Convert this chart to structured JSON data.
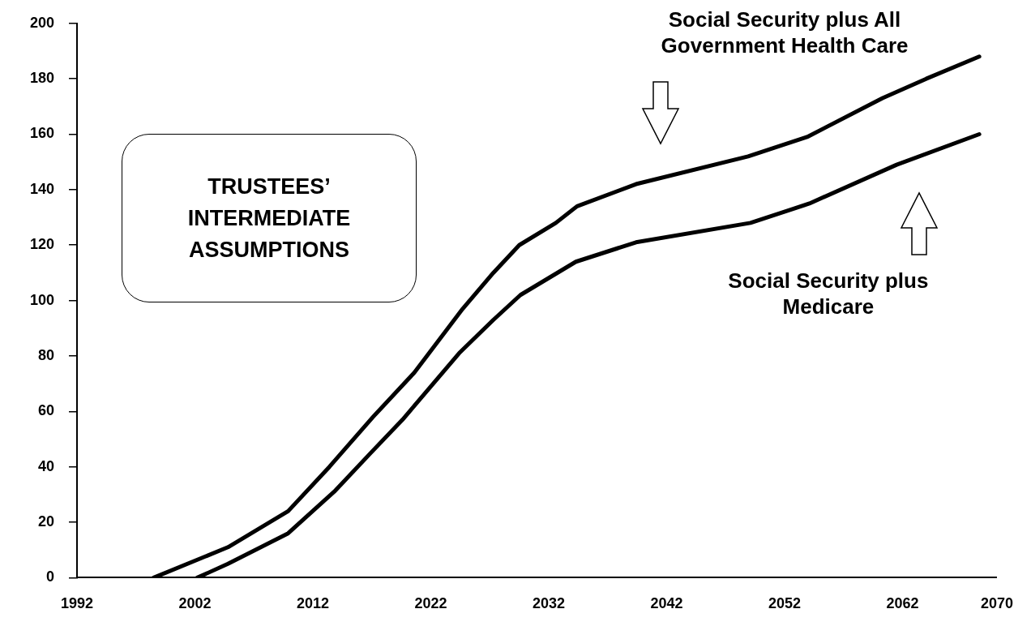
{
  "chart_data": {
    "type": "line",
    "xlim": [
      1992,
      2070
    ],
    "xticks": [
      1992,
      2002,
      2012,
      2022,
      2032,
      2042,
      2052,
      2062,
      2070
    ],
    "ylim": [
      0,
      200
    ],
    "yticks": [
      0,
      20,
      40,
      60,
      80,
      100,
      120,
      140,
      160,
      180,
      200
    ],
    "legend": false,
    "marker": "none",
    "line_style": "solid",
    "annotations": [
      "TRUSTEES’ INTERMEDIATE ASSUMPTIONS"
    ],
    "series": [
      {
        "name": "Social Security plus All Government Health Care",
        "color": "#000000",
        "x": [
          1998.5,
          2004.8,
          2009.9,
          2013.4,
          2017.1,
          2020.6,
          2024.7,
          2027.3,
          2029.5,
          2032.6,
          2034.4,
          2039.4,
          2048.9,
          2053.9,
          2060.3,
          2064,
          2068.5
        ],
        "values": [
          0,
          11,
          24,
          40,
          58,
          74,
          97,
          110,
          120,
          128,
          134,
          142,
          152,
          159,
          173,
          180,
          188
        ]
      },
      {
        "name": "Social Security plus Medicare",
        "color": "#000000",
        "x": [
          2002.2,
          2004.8,
          2009.9,
          2013.8,
          2016.9,
          2019.6,
          2021.6,
          2024.4,
          2027.3,
          2029.6,
          2034.3,
          2039.4,
          2049.1,
          2054.1,
          2061.5,
          2068.5
        ],
        "values": [
          0,
          5,
          16,
          31,
          45,
          57,
          67,
          81,
          93,
          102,
          114,
          121,
          128,
          135,
          149,
          160
        ]
      }
    ]
  }
}
